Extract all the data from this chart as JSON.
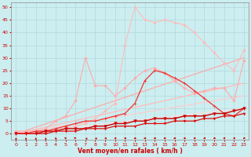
{
  "xlabel": "Vent moyen/en rafales ( km/h )",
  "xlim": [
    -0.5,
    23.5
  ],
  "ylim": [
    -2.5,
    52
  ],
  "xticks": [
    0,
    1,
    2,
    3,
    4,
    5,
    6,
    7,
    8,
    9,
    10,
    11,
    12,
    13,
    14,
    15,
    16,
    17,
    18,
    19,
    20,
    21,
    22,
    23
  ],
  "yticks": [
    0,
    5,
    10,
    15,
    20,
    25,
    30,
    35,
    40,
    45,
    50
  ],
  "background_color": "#cceef0",
  "grid_color": "#aad4d8",
  "lines": [
    {
      "x": [
        0,
        23
      ],
      "y": [
        0,
        30
      ],
      "color": "#ffaaaa",
      "lw": 0.9,
      "marker": null
    },
    {
      "x": [
        0,
        23
      ],
      "y": [
        0,
        20
      ],
      "color": "#ffbbbb",
      "lw": 0.9,
      "marker": null
    },
    {
      "x": [
        0,
        23
      ],
      "y": [
        0,
        15
      ],
      "color": "#ffcccc",
      "lw": 0.9,
      "marker": null
    },
    {
      "x": [
        0,
        23
      ],
      "y": [
        0,
        10
      ],
      "color": "#ffdddd",
      "lw": 0.9,
      "marker": null
    },
    {
      "x": [
        0,
        1,
        2,
        3,
        4,
        5,
        6,
        7,
        8,
        9,
        10,
        11,
        12,
        13,
        14,
        15,
        16,
        17,
        18,
        19,
        20,
        21,
        22,
        23
      ],
      "y": [
        1,
        1,
        1,
        2,
        5,
        7,
        13,
        30,
        19,
        19,
        15,
        18,
        22,
        25,
        26,
        24,
        21,
        18,
        16,
        17,
        18,
        18,
        13,
        29
      ],
      "color": "#ffaaaa",
      "lw": 0.8,
      "marker": "o",
      "ms": 2.0
    },
    {
      "x": [
        0,
        1,
        2,
        3,
        4,
        5,
        6,
        7,
        8,
        9,
        10,
        11,
        12,
        13,
        14,
        15,
        16,
        17,
        18,
        19,
        20,
        21,
        22,
        23
      ],
      "y": [
        1,
        1,
        1,
        1,
        2,
        2,
        3,
        4,
        6,
        9,
        12,
        35,
        50,
        45,
        44,
        45,
        44,
        43,
        40,
        36,
        32,
        28,
        25,
        33
      ],
      "color": "#ffbbbb",
      "lw": 0.8,
      "marker": "o",
      "ms": 2.0
    },
    {
      "x": [
        0,
        1,
        2,
        3,
        4,
        5,
        6,
        7,
        8,
        9,
        10,
        11,
        12,
        13,
        14,
        15,
        16,
        17,
        18,
        19,
        20,
        21,
        22,
        23
      ],
      "y": [
        0,
        0,
        1,
        1,
        2,
        3,
        4,
        5,
        5,
        6,
        7,
        8,
        12,
        21,
        25,
        24,
        22,
        20,
        17,
        14,
        11,
        8,
        7,
        10
      ],
      "color": "#ee3333",
      "lw": 0.9,
      "marker": "+",
      "ms": 3.5
    },
    {
      "x": [
        0,
        1,
        2,
        3,
        4,
        5,
        6,
        7,
        8,
        9,
        10,
        11,
        12,
        13,
        14,
        15,
        16,
        17,
        18,
        19,
        20,
        21,
        22,
        23
      ],
      "y": [
        0,
        0,
        0,
        1,
        1,
        2,
        2,
        2,
        3,
        3,
        4,
        4,
        5,
        5,
        6,
        6,
        6,
        7,
        7,
        7,
        8,
        8,
        9,
        10
      ],
      "color": "#cc0000",
      "lw": 1.0,
      "marker": "v",
      "ms": 2.5
    },
    {
      "x": [
        0,
        1,
        2,
        3,
        4,
        5,
        6,
        7,
        8,
        9,
        10,
        11,
        12,
        13,
        14,
        15,
        16,
        17,
        18,
        19,
        20,
        21,
        22,
        23
      ],
      "y": [
        0,
        0,
        0,
        0,
        1,
        1,
        1,
        2,
        2,
        2,
        3,
        3,
        3,
        4,
        4,
        4,
        5,
        5,
        5,
        6,
        6,
        7,
        7,
        8
      ],
      "color": "#dd1111",
      "lw": 0.9,
      "marker": "v",
      "ms": 2.0
    }
  ],
  "wind_arrows": {
    "y": -1.8,
    "color": "#cc0000",
    "angles_deg": [
      90,
      90,
      90,
      90,
      100,
      110,
      120,
      130,
      140,
      150,
      160,
      165,
      170,
      175,
      180,
      185,
      190,
      195,
      200,
      200,
      200,
      200,
      200,
      200
    ]
  }
}
